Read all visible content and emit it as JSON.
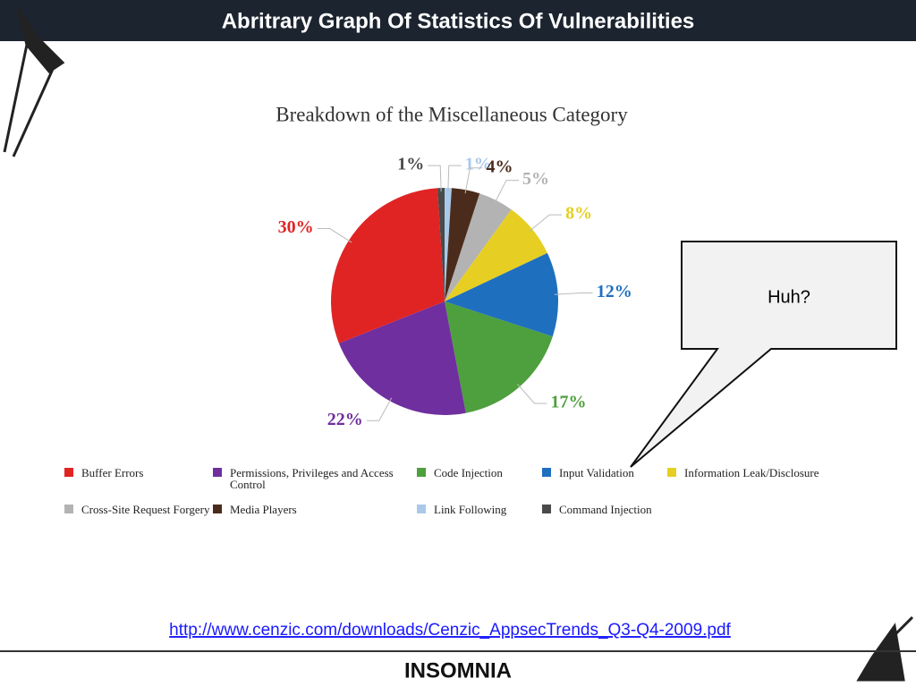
{
  "slide_title": "Abritrary Graph Of Statistics Of Vulnerabilities",
  "callout": "Huh?",
  "link": "http://www.cenzic.com/downloads/Cenzic_AppsecTrends_Q3-Q4-2009.pdf",
  "footer": "INSOMNIA",
  "chart_data": {
    "type": "pie",
    "title": "Breakdown of the Miscellaneous Category",
    "categories": [
      "Link Following",
      "Media Players",
      "Cross-Site Request Forgery",
      "Information Leak/Disclosure",
      "Input Validation",
      "Code Injection",
      "Permissions, Privileges and Access Control",
      "Buffer Errors",
      "Command Injection"
    ],
    "values": [
      1,
      4,
      5,
      8,
      12,
      17,
      22,
      30,
      1
    ],
    "value_labels": [
      "1%",
      "4%",
      "5%",
      "8%",
      "12%",
      "17%",
      "22%",
      "30%",
      "1%"
    ],
    "colors": [
      "#a9c9ea",
      "#4b2c1c",
      "#b3b3b3",
      "#e6cf22",
      "#1f6fbf",
      "#4e9f3d",
      "#6f2f9f",
      "#e02424",
      "#4a4a4a"
    ]
  }
}
